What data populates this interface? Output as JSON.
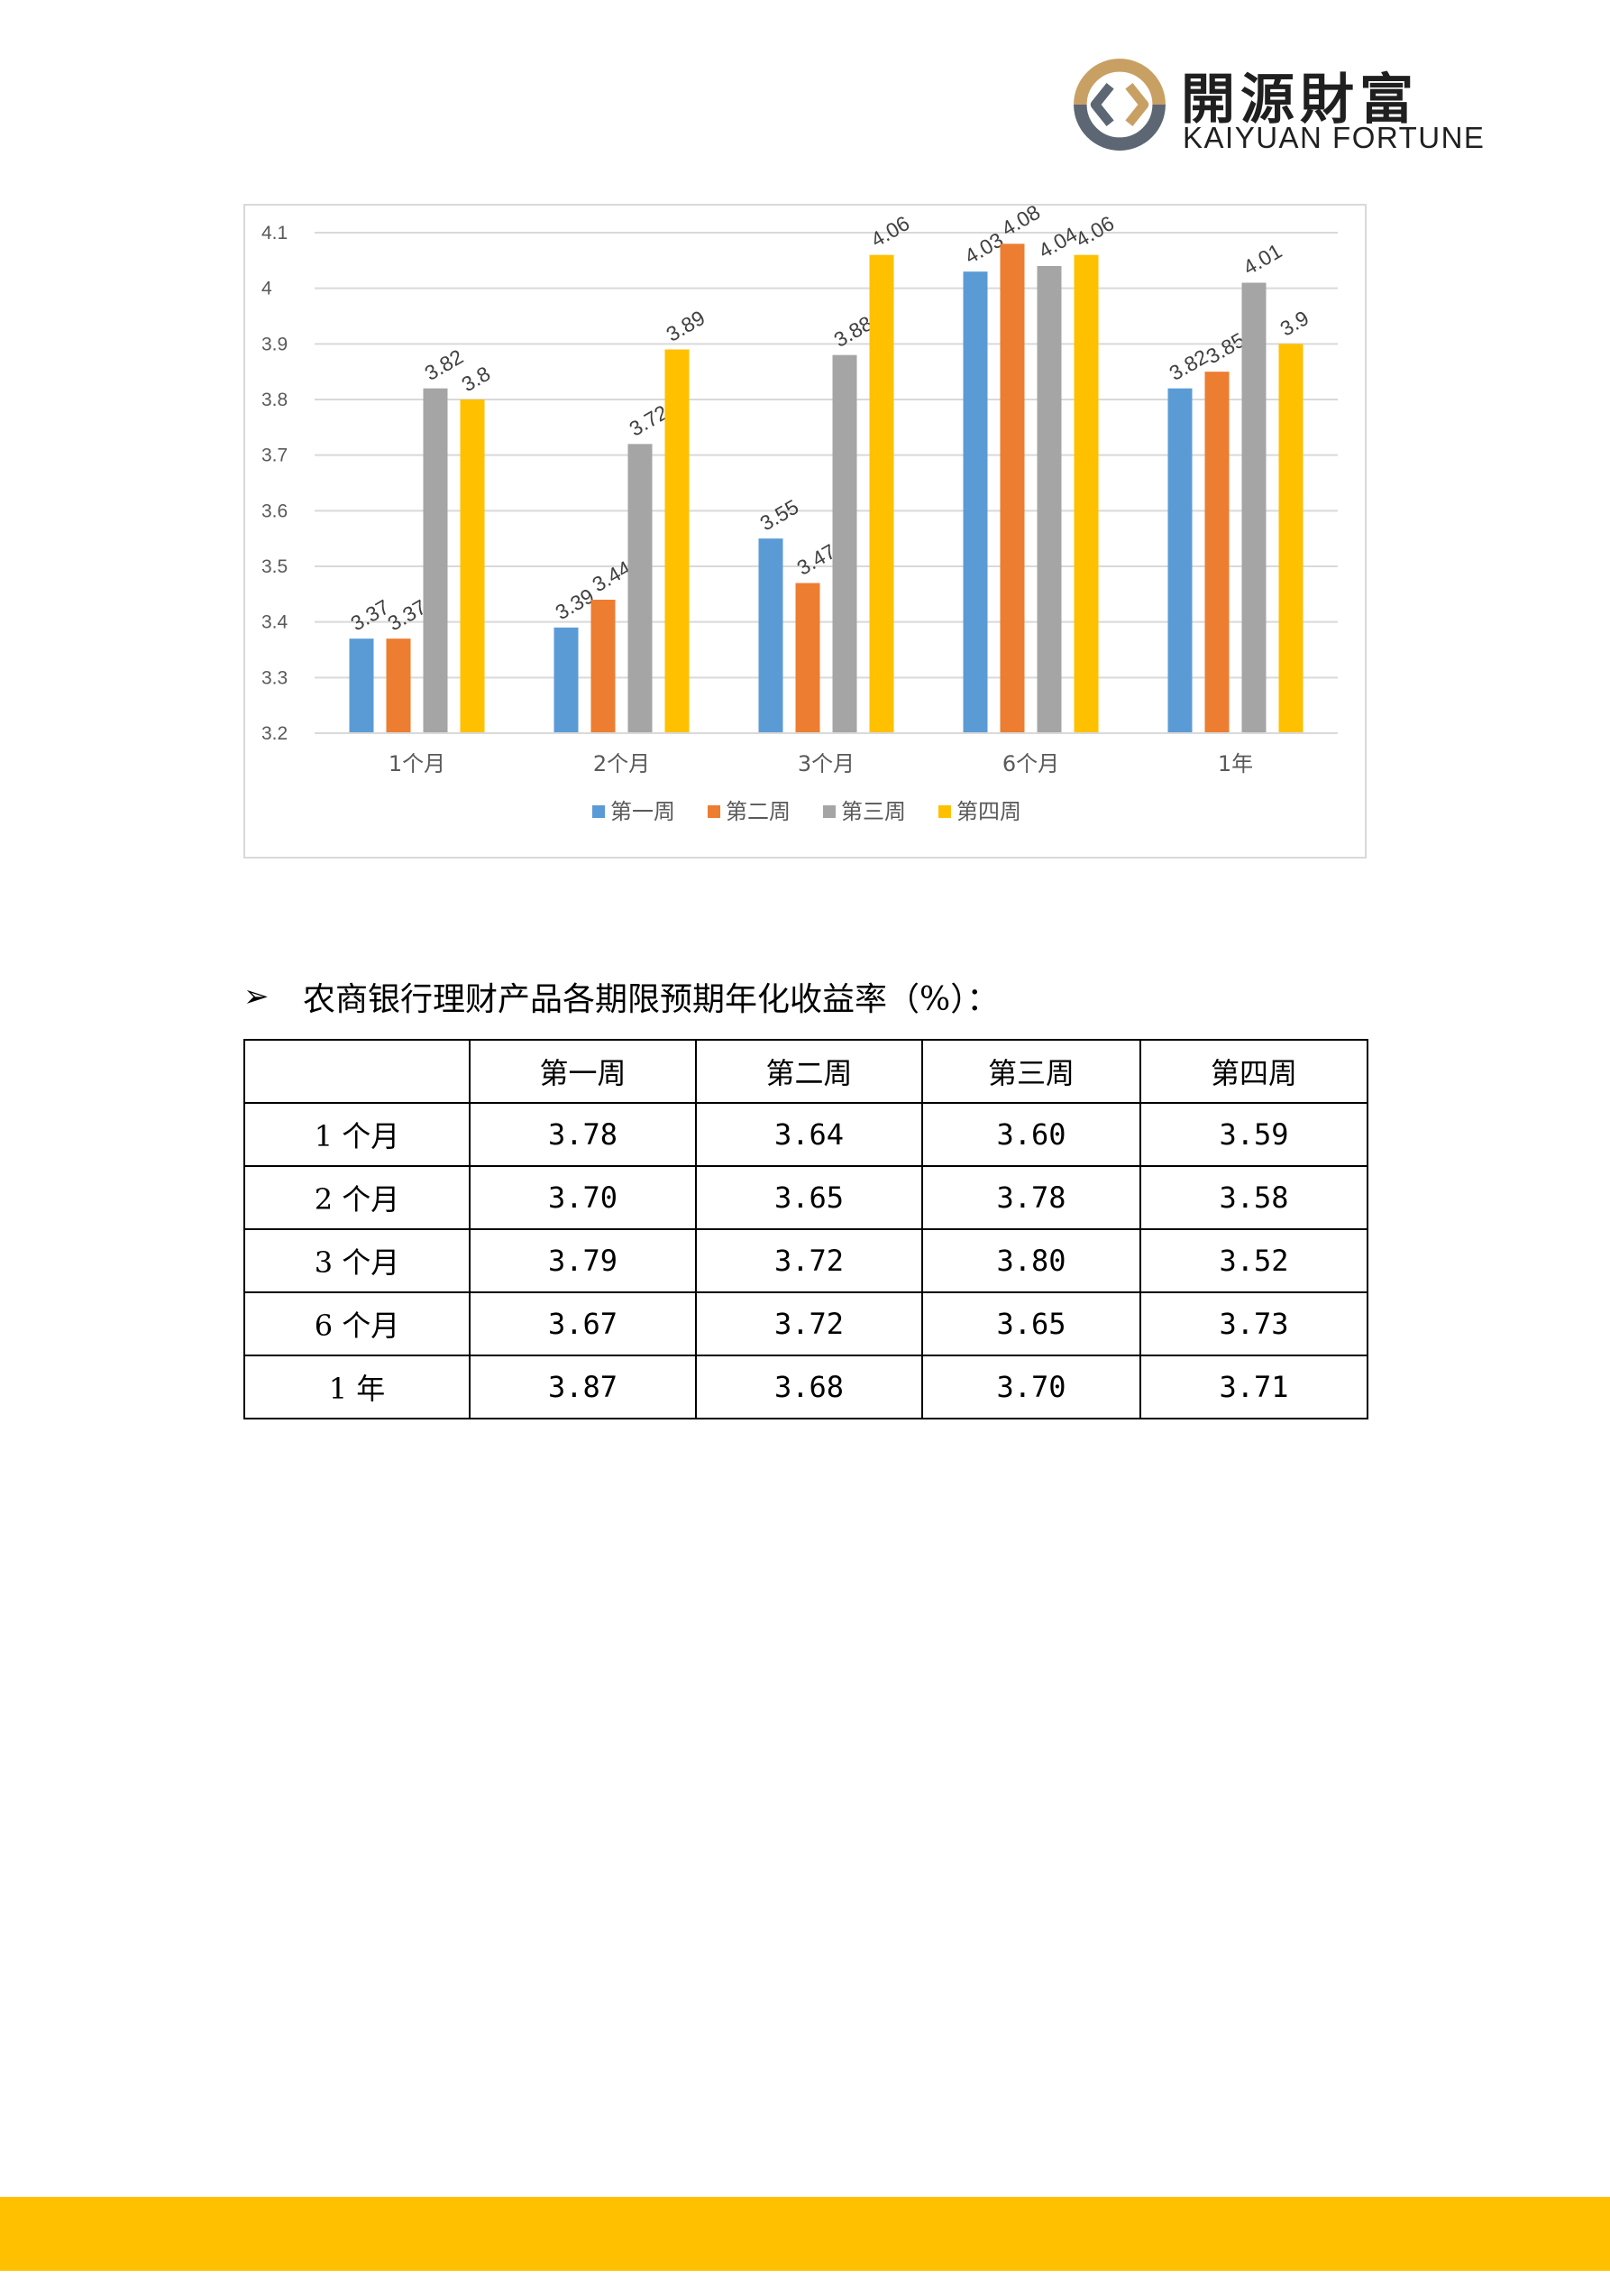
{
  "logo": {
    "name_cn": "開源財富",
    "name_en": "KAIYUAN FORTUNE"
  },
  "chart_data": {
    "type": "bar",
    "categories": [
      "1个月",
      "2个月",
      "3个月",
      "6个月",
      "1年"
    ],
    "series": [
      {
        "name": "第一周",
        "color": "#5b9bd5",
        "values": [
          3.37,
          3.39,
          3.55,
          4.03,
          3.82
        ]
      },
      {
        "name": "第二周",
        "color": "#ed7d31",
        "values": [
          3.37,
          3.44,
          3.47,
          4.08,
          3.85
        ]
      },
      {
        "name": "第三周",
        "color": "#a5a5a5",
        "values": [
          3.82,
          3.72,
          3.88,
          4.04,
          4.01
        ]
      },
      {
        "name": "第四周",
        "color": "#ffc000",
        "values": [
          3.8,
          3.89,
          4.06,
          4.06,
          3.9
        ]
      }
    ],
    "ylim": [
      3.2,
      4.1
    ],
    "yticks": [
      "3.2",
      "3.3",
      "3.4",
      "3.5",
      "3.6",
      "3.7",
      "3.8",
      "3.9",
      "4",
      "4.1"
    ],
    "grid": true,
    "legend_position": "bottom",
    "data_labels": true
  },
  "section": {
    "heading": "农商银行理财产品各期限预期年化收益率（%）："
  },
  "table": {
    "columns": [
      "",
      "第一周",
      "第二周",
      "第三周",
      "第四周"
    ],
    "rows": [
      {
        "label": "1 个月",
        "values": [
          "3.78",
          "3.64",
          "3.60",
          "3.59"
        ]
      },
      {
        "label": "2 个月",
        "values": [
          "3.70",
          "3.65",
          "3.78",
          "3.58"
        ]
      },
      {
        "label": "3 个月",
        "values": [
          "3.79",
          "3.72",
          "3.80",
          "3.52"
        ]
      },
      {
        "label": "6 个月",
        "values": [
          "3.67",
          "3.72",
          "3.65",
          "3.73"
        ]
      },
      {
        "label": "1 年",
        "values": [
          "3.87",
          "3.68",
          "3.70",
          "3.71"
        ]
      }
    ]
  },
  "colors": {
    "footer_bar": "#ffc000",
    "logo_gold": "#c9a063",
    "logo_slate": "#5c6773"
  }
}
